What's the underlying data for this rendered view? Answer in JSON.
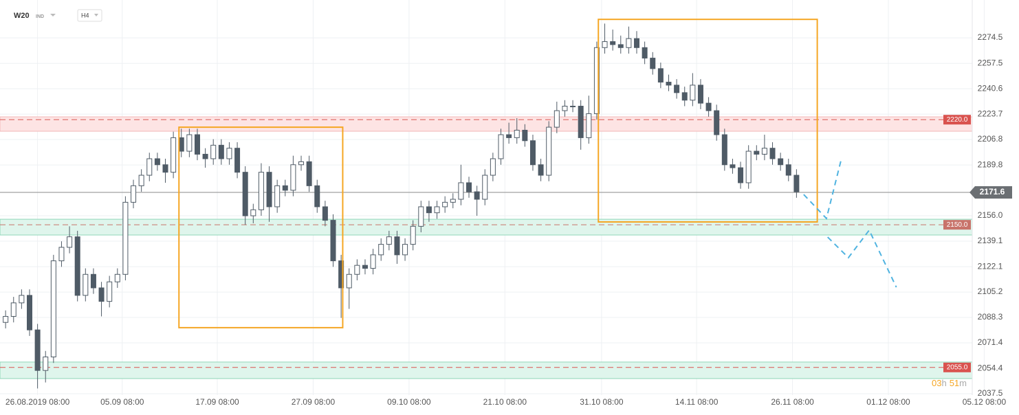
{
  "chart_data": {
    "type": "candlestick",
    "symbol": "W20",
    "market": "IND",
    "interval": "H4",
    "x": [
      -4,
      -3,
      -2,
      -1,
      0,
      1,
      2,
      3,
      4,
      5,
      6,
      7,
      8,
      9,
      10,
      11,
      12,
      13,
      14,
      15,
      16,
      17,
      18,
      19,
      20,
      21,
      22,
      23,
      24,
      25,
      26,
      27,
      28,
      29,
      30,
      31,
      32,
      33,
      34,
      35,
      36,
      37,
      38,
      39,
      40,
      41,
      42,
      43,
      44,
      45,
      46,
      47,
      48,
      49,
      50,
      51,
      52,
      53,
      54,
      55,
      56,
      57,
      58,
      59,
      60,
      61,
      62,
      63,
      64,
      65,
      66,
      67,
      68,
      69,
      70,
      71,
      72,
      73,
      74,
      75,
      76,
      77,
      78,
      79,
      80,
      81,
      82,
      83,
      84,
      85,
      86,
      87,
      88,
      89,
      90,
      91,
      92,
      93,
      94,
      95
    ],
    "open": [
      2085,
      2089,
      2098,
      2103,
      2080,
      2053,
      2062,
      2126,
      2135,
      2142,
      2103,
      2117,
      2108,
      2099,
      2112,
      2117,
      2165,
      2176,
      2183,
      2194,
      2190,
      2185,
      2208,
      2199,
      2210,
      2197,
      2194,
      2203,
      2194,
      2201,
      2185,
      2156,
      2160,
      2185,
      2162,
      2176,
      2173,
      2190,
      2192,
      2176,
      2162,
      2153,
      2126,
      2108,
      2117,
      2123,
      2121,
      2130,
      2137,
      2142,
      2130,
      2137,
      2149,
      2162,
      2158,
      2162,
      2165,
      2167,
      2178,
      2172,
      2167,
      2183,
      2194,
      2210,
      2208,
      2213,
      2206,
      2190,
      2183,
      2215,
      2226,
      2229,
      2229,
      2208,
      2224,
      2268,
      2272,
      2270,
      2268,
      2274,
      2268,
      2261,
      2254,
      2245,
      2243,
      2238,
      2233,
      2243,
      2231,
      2226,
      2210,
      2190,
      2188,
      2178,
      2199,
      2197,
      2201,
      2194,
      2190,
      2183
    ],
    "high": [
      2093,
      2102,
      2107,
      2107,
      2084,
      2066,
      2130,
      2139,
      2149,
      2146,
      2121,
      2121,
      2112,
      2116,
      2121,
      2169,
      2180,
      2187,
      2198,
      2198,
      2194,
      2212,
      2214,
      2214,
      2214,
      2201,
      2207,
      2207,
      2205,
      2205,
      2189,
      2164,
      2191,
      2189,
      2180,
      2180,
      2196,
      2196,
      2196,
      2180,
      2166,
      2157,
      2130,
      2121,
      2127,
      2127,
      2134,
      2141,
      2146,
      2146,
      2141,
      2153,
      2166,
      2166,
      2166,
      2169,
      2171,
      2190,
      2182,
      2176,
      2187,
      2198,
      2214,
      2218,
      2221,
      2217,
      2210,
      2194,
      2219,
      2232,
      2233,
      2233,
      2233,
      2236,
      2272,
      2284,
      2280,
      2276,
      2282,
      2279,
      2272,
      2265,
      2258,
      2250,
      2247,
      2242,
      2251,
      2247,
      2235,
      2230,
      2214,
      2194,
      2192,
      2203,
      2203,
      2210,
      2205,
      2198,
      2194,
      2187
    ],
    "low": [
      2081,
      2085,
      2094,
      2076,
      2041,
      2045,
      2058,
      2122,
      2131,
      2099,
      2099,
      2104,
      2089,
      2095,
      2108,
      2113,
      2161,
      2172,
      2179,
      2186,
      2178,
      2181,
      2195,
      2195,
      2193,
      2188,
      2190,
      2190,
      2190,
      2181,
      2150,
      2151,
      2156,
      2152,
      2158,
      2169,
      2169,
      2186,
      2172,
      2158,
      2149,
      2122,
      2088,
      2094,
      2113,
      2117,
      2117,
      2126,
      2133,
      2124,
      2126,
      2133,
      2145,
      2152,
      2154,
      2158,
      2161,
      2163,
      2168,
      2156,
      2163,
      2179,
      2190,
      2204,
      2204,
      2202,
      2186,
      2179,
      2179,
      2211,
      2222,
      2225,
      2200,
      2204,
      2220,
      2264,
      2266,
      2264,
      2264,
      2264,
      2257,
      2250,
      2241,
      2239,
      2234,
      2229,
      2229,
      2227,
      2222,
      2206,
      2186,
      2184,
      2174,
      2174,
      2193,
      2193,
      2190,
      2186,
      2179,
      2168
    ],
    "close": [
      2089,
      2098,
      2103,
      2080,
      2053,
      2062,
      2126,
      2135,
      2142,
      2103,
      2117,
      2108,
      2099,
      2112,
      2117,
      2165,
      2176,
      2183,
      2194,
      2190,
      2185,
      2208,
      2199,
      2210,
      2197,
      2194,
      2203,
      2194,
      2201,
      2185,
      2156,
      2160,
      2185,
      2162,
      2176,
      2173,
      2190,
      2192,
      2176,
      2162,
      2153,
      2126,
      2108,
      2117,
      2123,
      2121,
      2130,
      2137,
      2142,
      2130,
      2137,
      2149,
      2162,
      2158,
      2162,
      2165,
      2167,
      2178,
      2172,
      2167,
      2183,
      2194,
      2210,
      2208,
      2213,
      2206,
      2190,
      2183,
      2215,
      2226,
      2229,
      2229,
      2208,
      2224,
      2268,
      2272,
      2270,
      2268,
      2274,
      2268,
      2261,
      2254,
      2245,
      2243,
      2238,
      2233,
      2243,
      2231,
      2226,
      2210,
      2190,
      2188,
      2178,
      2199,
      2197,
      2201,
      2194,
      2190,
      2183,
      2172
    ],
    "up_color": "#ffffff",
    "down_color": "#4f5b66",
    "wick_color": "#4f5b66",
    "xlim": [
      -4.7,
      117
    ],
    "xticks": [
      {
        "value": 0,
        "label": "26.08.2019 08:00"
      },
      {
        "value": 10.6,
        "label": "05.09 08:00"
      },
      {
        "value": 22.5,
        "label": "17.09 08:00"
      },
      {
        "value": 34.5,
        "label": "27.09 08:00"
      },
      {
        "value": 46.5,
        "label": "09.10 08:00"
      },
      {
        "value": 58.5,
        "label": "21.10 08:00"
      },
      {
        "value": 70.6,
        "label": "31.10 08:00"
      },
      {
        "value": 82.5,
        "label": "14.11 08:00"
      },
      {
        "value": 94.5,
        "label": "26.11 08:00"
      },
      {
        "value": 106.5,
        "label": "01.12 08:00"
      },
      {
        "value": 118.5,
        "label": "05.12 08:00"
      }
    ],
    "ylim": [
      2036.6,
      2299.7
    ],
    "yticks": [
      2274.5,
      2257.5,
      2240.6,
      2223.7,
      2206.8,
      2189.8,
      {
        "value": 2156,
        "label": "2156.0"
      },
      2139.1,
      2122.1,
      2105.2,
      2088.3,
      2071.4,
      2054.4,
      2037.5
    ],
    "grid": true,
    "levels": [
      {
        "value": 2220,
        "label": "2220.0",
        "band": [
          2212.3,
          2221.9
        ],
        "color": "#d9534f",
        "band_color": "#fde4e4"
      },
      {
        "value": 2150,
        "label": "2150.0",
        "band": [
          2143.2,
          2153.7
        ],
        "color": "#c8736a",
        "band_color": "#dff5ec"
      },
      {
        "value": 2055,
        "label": "2055.0",
        "band": [
          2047.6,
          2058.6
        ],
        "color": "#d9534f",
        "band_color": "#dff5ec"
      }
    ],
    "last_price": 2171.6,
    "boxes": [
      {
        "x": [
          17.7,
          38.2
        ],
        "y": [
          2081.5,
          2215
        ]
      },
      {
        "x": [
          70.2,
          97.6
        ],
        "y": [
          2151.9,
          2286.8
        ]
      }
    ],
    "box_color": "#f5a623",
    "projections": [
      {
        "x": [
          95.9,
          98.75,
          100.6
        ],
        "y": [
          2170.2,
          2154.2,
          2193.5
        ]
      },
      {
        "x": [
          98.9,
          101.5,
          104.1,
          107.5
        ],
        "y": [
          2141.8,
          2128.1,
          2146.4,
          2108.4
        ]
      }
    ],
    "projection_color": "#4fb3e0",
    "timer": {
      "hours": "03",
      "hours_unit": "h",
      "minutes": "51",
      "minutes_unit": "m"
    }
  }
}
